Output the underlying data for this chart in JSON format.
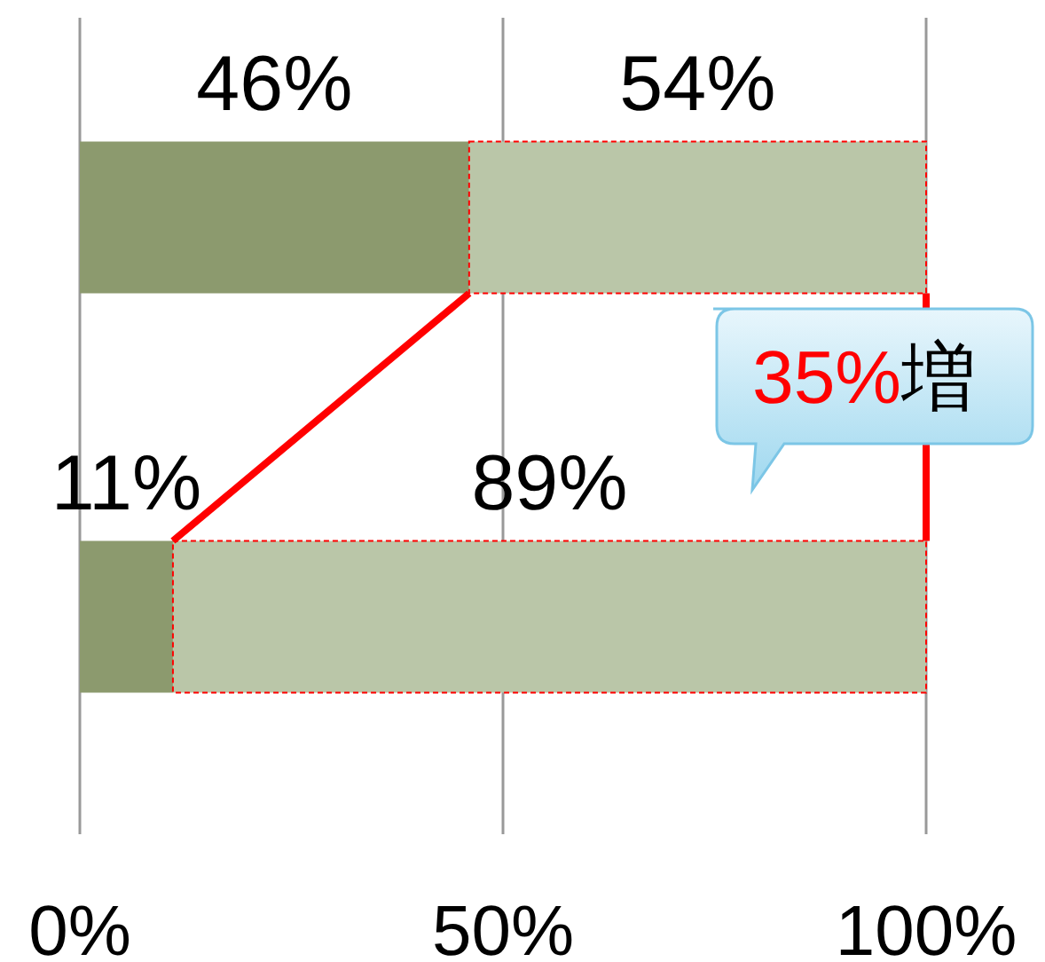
{
  "chart_data": {
    "type": "bar",
    "orientation": "horizontal",
    "stacked": true,
    "categories": [
      null,
      null
    ],
    "series": [
      {
        "color": "#8c9a6e",
        "values": [
          46,
          11
        ],
        "value_labels": [
          "46%",
          "11%"
        ]
      },
      {
        "color": "#bac6a8",
        "values": [
          54,
          89
        ],
        "value_labels": [
          "54%",
          "89%"
        ]
      }
    ],
    "xlim": [
      0,
      100
    ],
    "xticks": [
      {
        "value": 0,
        "label": "0%"
      },
      {
        "value": 50,
        "label": "50%"
      },
      {
        "value": 100,
        "label": "100%"
      }
    ],
    "grid": "x",
    "annotations": [
      "35%増"
    ]
  }
}
